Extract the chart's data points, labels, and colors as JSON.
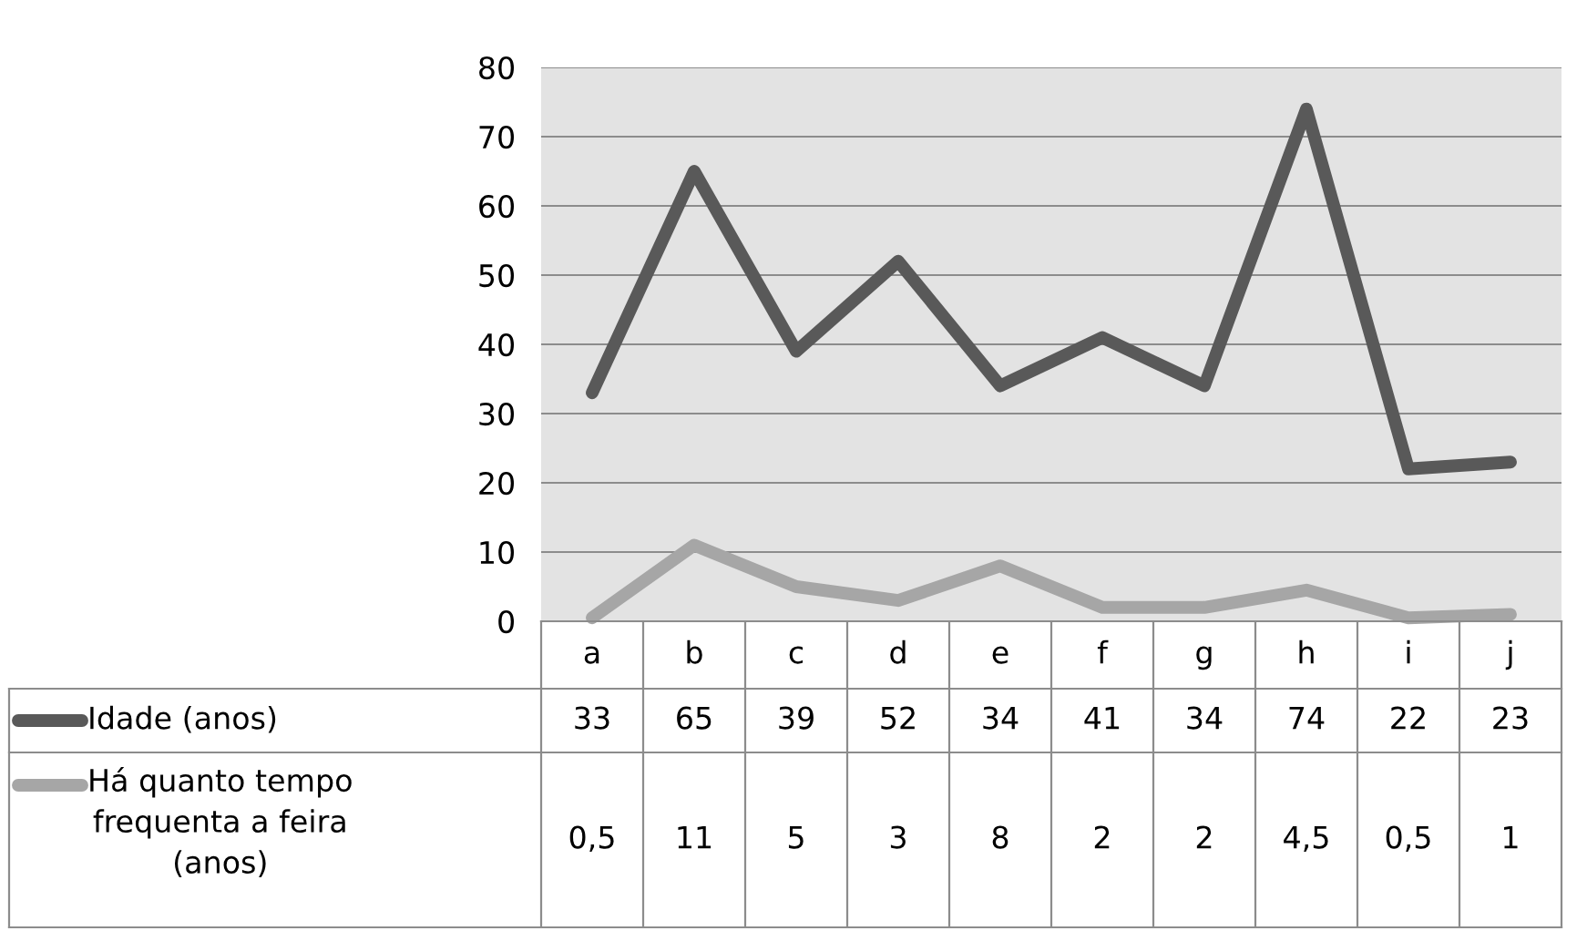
{
  "chart_data": {
    "type": "line",
    "categories": [
      "a",
      "b",
      "c",
      "d",
      "e",
      "f",
      "g",
      "h",
      "i",
      "j"
    ],
    "series": [
      {
        "name": "Idade (anos)",
        "color": "#595959",
        "values": [
          33,
          65,
          39,
          52,
          34,
          41,
          34,
          74,
          22,
          23
        ],
        "value_labels": [
          "33",
          "65",
          "39",
          "52",
          "34",
          "41",
          "34",
          "74",
          "22",
          "23"
        ]
      },
      {
        "name": "Há quanto tempo frequenta a feira (anos)",
        "color": "#a6a6a6",
        "values": [
          0.5,
          11,
          5,
          3,
          8,
          2,
          2,
          4.5,
          0.5,
          1
        ],
        "value_labels": [
          "0,5",
          "11",
          "5",
          "3",
          "8",
          "2",
          "2",
          "4,5",
          "0,5",
          "1"
        ]
      }
    ],
    "ylim": [
      0,
      80
    ],
    "yticks": [
      0,
      10,
      20,
      30,
      40,
      50,
      60,
      70,
      80
    ],
    "grid": "y",
    "legend": "left",
    "marker": "none",
    "line_style": "solid"
  }
}
